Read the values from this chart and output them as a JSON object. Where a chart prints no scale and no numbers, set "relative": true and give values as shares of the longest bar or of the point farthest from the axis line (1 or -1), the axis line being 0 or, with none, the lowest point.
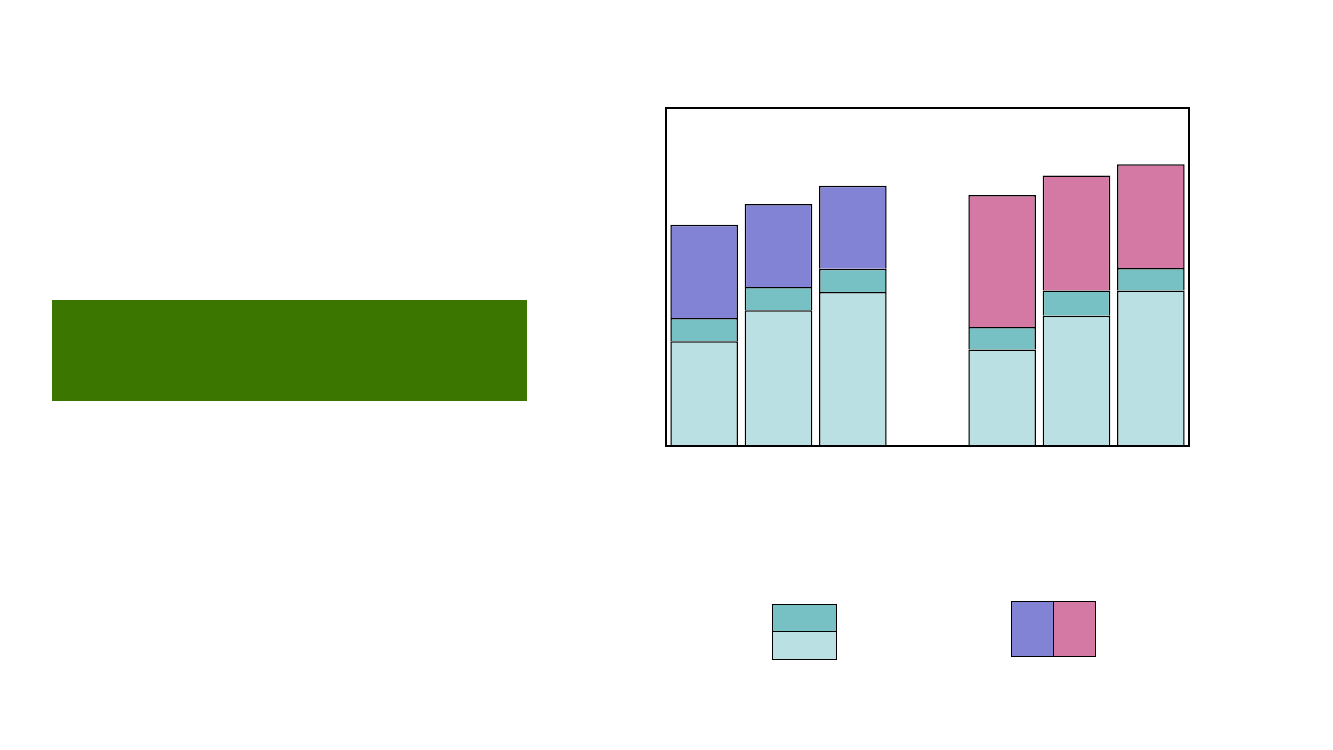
{
  "chart_data": [
    {
      "type": "bar",
      "stacked": true,
      "relative": true,
      "categories": [
        null,
        null,
        null
      ],
      "legend": false,
      "series": [
        {
          "color": "#bbe0e3",
          "values": [
            0.4,
            0.52,
            0.59
          ]
        },
        {
          "color": "#77c1c4",
          "values": [
            0.09,
            0.09,
            0.09
          ]
        },
        {
          "color": "#8383d6",
          "values": [
            0.36,
            0.32,
            0.32
          ]
        }
      ]
    },
    {
      "type": "bar",
      "stacked": true,
      "relative": true,
      "categories": [
        null,
        null,
        null
      ],
      "legend": false,
      "series": [
        {
          "color": "#bbe0e3",
          "values": [
            0.34,
            0.46,
            0.55
          ]
        },
        {
          "color": "#77c1c4",
          "values": [
            0.08,
            0.09,
            0.08
          ]
        },
        {
          "color": "#d379a4",
          "values": [
            0.47,
            0.41,
            0.37
          ]
        }
      ]
    }
  ]
}
